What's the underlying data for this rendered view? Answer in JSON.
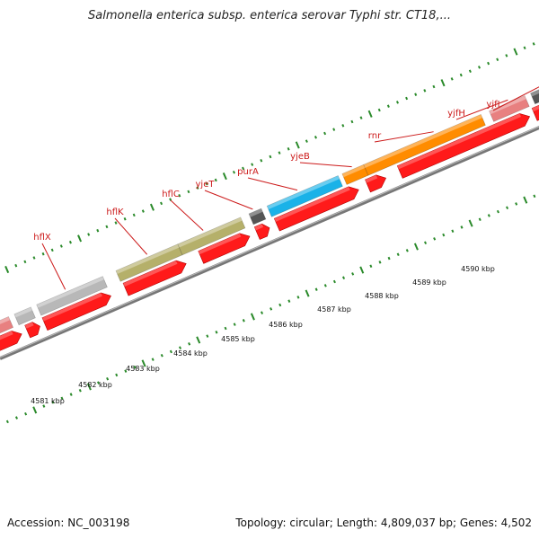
{
  "title": "Salmonella enterica subsp. enterica serovar Typhi str. CT18,...",
  "footer": {
    "accession": "Accession: NC_003198",
    "summary": "Topology: circular; Length: 4,809,037 bp; Genes: 4,502"
  },
  "colors": {
    "cds": "#ff1a1a",
    "gene_grey": "#b8b8b8",
    "gene_olive": "#b5b06a",
    "gene_blue": "#1ab2e8",
    "gene_orange": "#ff8c00",
    "gene_pink": "#e88080",
    "gene_dark": "#555555",
    "backbone": "#888888",
    "tick_green": "#2a8a2a",
    "label_red": "#cc1a1a"
  },
  "genes": [
    {
      "name": "hflX",
      "color": "grey"
    },
    {
      "name": "hflK",
      "color": "olive"
    },
    {
      "name": "hflC",
      "color": "olive"
    },
    {
      "name": "yjeT",
      "color": "dark"
    },
    {
      "name": "purA",
      "color": "blue"
    },
    {
      "name": "yjeB",
      "color": "orange"
    },
    {
      "name": "rnr",
      "color": "orange"
    },
    {
      "name": "yjfH",
      "color": "pink"
    },
    {
      "name": "yjfI",
      "color": "dark"
    }
  ],
  "scale_labels": [
    "4581 kbp",
    "4582 kbp",
    "4583 kbp",
    "4584 kbp",
    "4585 kbp",
    "4586 kbp",
    "4587 kbp",
    "4588 kbp",
    "4589 kbp",
    "4590 kbp"
  ]
}
